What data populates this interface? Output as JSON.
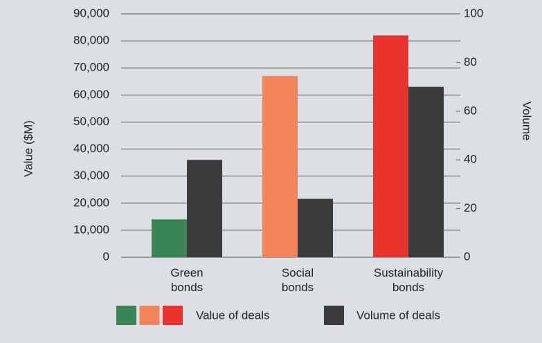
{
  "chart_data": {
    "type": "bar",
    "y_label": "Value ($M)",
    "y2_label": "Volume",
    "categories": [
      "Green bonds",
      "Social bonds",
      "Sustainability bonds"
    ],
    "series": [
      {
        "name": "Value of deals",
        "colors": [
          "#3a8456",
          "#f5845a",
          "#e8332e"
        ],
        "values": [
          14000,
          67000,
          82000
        ]
      },
      {
        "name": "Volume of deals",
        "color": "#3b3b3d",
        "axis": "y2",
        "values": [
          40,
          24,
          70
        ]
      }
    ],
    "ylim": [
      0,
      90000
    ],
    "yticks": [
      {
        "value": 0,
        "label": "0"
      },
      {
        "value": 10000,
        "label": "10,000"
      },
      {
        "value": 20000,
        "label": "20,000"
      },
      {
        "value": 30000,
        "label": "30,000"
      },
      {
        "value": 40000,
        "label": "40,000"
      },
      {
        "value": 50000,
        "label": "50,000"
      },
      {
        "value": 60000,
        "label": "60,000"
      },
      {
        "value": 70000,
        "label": "70,000"
      },
      {
        "value": 80000,
        "label": "80,000"
      },
      {
        "value": 90000,
        "label": "90,000"
      }
    ],
    "y2lim": [
      0,
      100
    ],
    "y2ticks": [
      0,
      20,
      40,
      60,
      80,
      100
    ],
    "grid": true
  }
}
